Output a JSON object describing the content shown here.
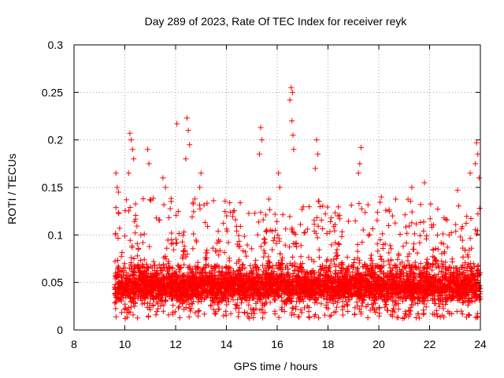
{
  "chart_data": {
    "type": "scatter",
    "title": "Day 289 of 2023, Rate Of TEC Index for receiver reyk",
    "xlabel": "GPS time / hours",
    "ylabel": "ROTI / TECUs",
    "xlim": [
      8,
      24
    ],
    "ylim": [
      0,
      0.3
    ],
    "xticks": [
      8,
      10,
      12,
      14,
      16,
      18,
      20,
      22,
      24
    ],
    "xtick_labels": [
      "8",
      "10",
      "12",
      "14",
      "16",
      "18",
      "20",
      "22",
      "24"
    ],
    "yticks": [
      0,
      0.05,
      0.1,
      0.15,
      0.2,
      0.25,
      0.3
    ],
    "ytick_labels": [
      "0",
      "0.05",
      "0.1",
      "0.15",
      "0.2",
      "0.25",
      "0.3"
    ],
    "grid": true,
    "marker": "+",
    "series": [
      {
        "name": "ROTI",
        "color": "#ff0000",
        "data_extent": {
          "x_start": 9.6,
          "x_end": 24.0
        },
        "baseline_band": {
          "low": 0.02,
          "high": 0.065,
          "typical": 0.045
        },
        "notable_points": [
          {
            "x": 9.65,
            "y": 0.165
          },
          {
            "x": 9.7,
            "y": 0.15
          },
          {
            "x": 9.75,
            "y": 0.145
          },
          {
            "x": 10.2,
            "y": 0.207
          },
          {
            "x": 10.25,
            "y": 0.2
          },
          {
            "x": 10.3,
            "y": 0.19
          },
          {
            "x": 10.15,
            "y": 0.165
          },
          {
            "x": 10.35,
            "y": 0.18
          },
          {
            "x": 10.9,
            "y": 0.19
          },
          {
            "x": 10.95,
            "y": 0.175
          },
          {
            "x": 11.5,
            "y": 0.16
          },
          {
            "x": 11.6,
            "y": 0.15
          },
          {
            "x": 12.05,
            "y": 0.217
          },
          {
            "x": 12.45,
            "y": 0.223
          },
          {
            "x": 12.5,
            "y": 0.21
          },
          {
            "x": 12.55,
            "y": 0.195
          },
          {
            "x": 12.4,
            "y": 0.18
          },
          {
            "x": 13.0,
            "y": 0.165
          },
          {
            "x": 12.95,
            "y": 0.15
          },
          {
            "x": 15.35,
            "y": 0.213
          },
          {
            "x": 15.4,
            "y": 0.2
          },
          {
            "x": 15.3,
            "y": 0.185
          },
          {
            "x": 16.05,
            "y": 0.165
          },
          {
            "x": 16.1,
            "y": 0.15
          },
          {
            "x": 16.55,
            "y": 0.255
          },
          {
            "x": 16.6,
            "y": 0.25
          },
          {
            "x": 16.5,
            "y": 0.242
          },
          {
            "x": 16.58,
            "y": 0.22
          },
          {
            "x": 16.62,
            "y": 0.205
          },
          {
            "x": 16.65,
            "y": 0.19
          },
          {
            "x": 17.55,
            "y": 0.2
          },
          {
            "x": 17.6,
            "y": 0.185
          },
          {
            "x": 17.5,
            "y": 0.17
          },
          {
            "x": 19.3,
            "y": 0.192
          },
          {
            "x": 19.25,
            "y": 0.175
          },
          {
            "x": 19.2,
            "y": 0.165
          },
          {
            "x": 20.1,
            "y": 0.14
          },
          {
            "x": 21.3,
            "y": 0.15
          },
          {
            "x": 21.8,
            "y": 0.155
          },
          {
            "x": 23.1,
            "y": 0.147
          },
          {
            "x": 23.6,
            "y": 0.165
          },
          {
            "x": 23.85,
            "y": 0.197
          },
          {
            "x": 23.9,
            "y": 0.185
          },
          {
            "x": 23.8,
            "y": 0.175
          },
          {
            "x": 23.95,
            "y": 0.16
          }
        ]
      }
    ]
  }
}
